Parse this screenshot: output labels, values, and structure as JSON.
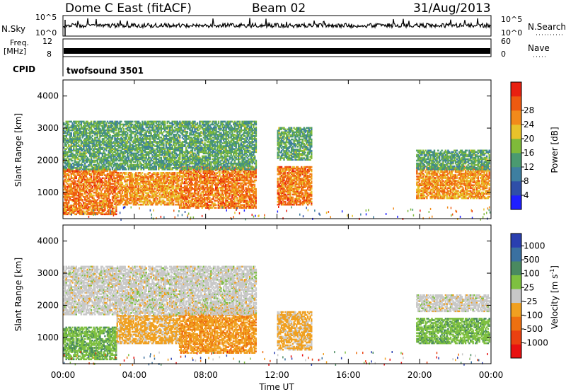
{
  "header": {
    "station": "Dome C East (fitACF)",
    "beam": "Beam 02",
    "date": "31/Aug/2013"
  },
  "top_panels": {
    "nsky": {
      "label": "N.Sky",
      "right_label": "N.Search",
      "tick_top": "10^5",
      "tick_bottom": "10^0",
      "right_tick_top": "10^5",
      "right_tick_bottom": "10^0"
    },
    "freq": {
      "label_line1": "Freq.",
      "label_line2": "[MHz]",
      "right_label": "Nave",
      "tick_top": "12",
      "tick_bottom": "8",
      "right_tick_top": "60",
      "right_tick_bottom": "0"
    },
    "cpid": {
      "label": "CPID",
      "value": "twofsound 3501"
    }
  },
  "chart_data": [
    {
      "type": "heatmap",
      "name": "power",
      "title": "",
      "xlabel": "",
      "ylabel": "Slant Range [km]",
      "x_ticks": [
        "00:00",
        "04:00",
        "08:00",
        "12:00",
        "16:00",
        "20:00",
        "00:00"
      ],
      "xlim_hours": [
        0,
        24
      ],
      "ylim_km": [
        180,
        4500
      ],
      "y_ticks": [
        1000,
        2000,
        3000,
        4000
      ],
      "colorbar": {
        "label": "Power [dB]",
        "ticks": [
          "4",
          "8",
          "12",
          "16",
          "20",
          "24",
          "28"
        ],
        "range": [
          0,
          30
        ],
        "colors": [
          "#1f1fff",
          "#2f4fa8",
          "#3e7fa0",
          "#4a9a70",
          "#7fba3a",
          "#e8c22a",
          "#f28a1a",
          "#ee5a10",
          "#e82010"
        ]
      },
      "echo_regions": [
        {
          "t": [
            0.0,
            3.0
          ],
          "r": [
            300,
            1700
          ],
          "level": 24
        },
        {
          "t": [
            3.0,
            6.5
          ],
          "r": [
            600,
            1600
          ],
          "level": 22
        },
        {
          "t": [
            6.5,
            10.8
          ],
          "r": [
            500,
            1800
          ],
          "level": 24
        },
        {
          "t": [
            0.0,
            10.8
          ],
          "r": [
            1700,
            3200
          ],
          "level": 12
        },
        {
          "t": [
            12.0,
            13.9
          ],
          "r": [
            600,
            1800
          ],
          "level": 24
        },
        {
          "t": [
            12.0,
            13.9
          ],
          "r": [
            2000,
            3000
          ],
          "level": 12
        },
        {
          "t": [
            19.8,
            23.9
          ],
          "r": [
            800,
            1800
          ],
          "level": 22
        },
        {
          "t": [
            19.8,
            23.9
          ],
          "r": [
            1700,
            2300
          ],
          "level": 12
        }
      ]
    },
    {
      "type": "heatmap",
      "name": "velocity",
      "title": "",
      "xlabel": "Time UT",
      "ylabel": "Slant Range [km]",
      "x_ticks": [
        "00:00",
        "04:00",
        "08:00",
        "12:00",
        "16:00",
        "20:00",
        "00:00"
      ],
      "xlim_hours": [
        0,
        24
      ],
      "ylim_km": [
        180,
        4500
      ],
      "y_ticks": [
        1000,
        2000,
        3000,
        4000
      ],
      "colorbar": {
        "label": "Velocity [m s^-1]",
        "ticks": [
          "1000",
          "500",
          "100",
          "25",
          "-25",
          "-100",
          "-500",
          "-1000"
        ],
        "colors": [
          "#2a3fb0",
          "#3a70a0",
          "#4a8a60",
          "#7ec040",
          "#c8c8c8",
          "#f0a020",
          "#ee7010",
          "#ea4010",
          "#e81010"
        ]
      },
      "echo_regions": [
        {
          "t": [
            0.0,
            3.0
          ],
          "r": [
            300,
            1300
          ],
          "level": 300
        },
        {
          "t": [
            3.0,
            6.5
          ],
          "r": [
            800,
            1700
          ],
          "level": -200
        },
        {
          "t": [
            6.5,
            10.8
          ],
          "r": [
            500,
            1900
          ],
          "level": -300
        },
        {
          "t": [
            0.0,
            10.8
          ],
          "r": [
            1700,
            3200
          ],
          "level": 0
        },
        {
          "t": [
            12.0,
            13.9
          ],
          "r": [
            600,
            1800
          ],
          "level": -200
        },
        {
          "t": [
            19.8,
            23.9
          ],
          "r": [
            800,
            1600
          ],
          "level": 300
        },
        {
          "t": [
            19.8,
            23.9
          ],
          "r": [
            1800,
            2300
          ],
          "level": 0
        }
      ]
    }
  ]
}
